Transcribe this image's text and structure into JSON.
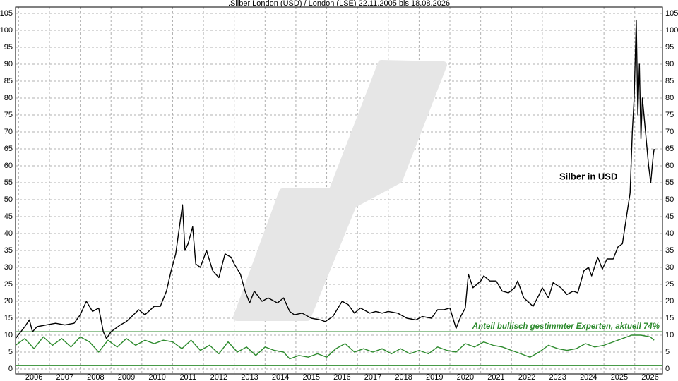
{
  "chart_data": {
    "type": "line",
    "title": ".Silber London (USD) / London (LSE) 22.11.2005 bis 18.08.2026",
    "annotations": [
      "Silber in USD",
      "Anteil bullisch gestimmter Experten, aktuell 74%"
    ],
    "xlim": [
      2005.9,
      2026.9
    ],
    "xticks": [
      2006,
      2007,
      2008,
      2009,
      2010,
      2011,
      2012,
      2013,
      2014,
      2015,
      2016,
      2017,
      2018,
      2019,
      2020,
      2021,
      2022,
      2023,
      2024,
      2025,
      2026
    ],
    "ylim": [
      0,
      105
    ],
    "yticks": [
      0,
      5,
      10,
      15,
      20,
      25,
      30,
      35,
      40,
      45,
      50,
      55,
      60,
      65,
      70,
      75,
      80,
      85,
      90,
      95,
      100,
      105
    ],
    "grid": true,
    "ref_lines": [
      1,
      11
    ],
    "ref_color": "#2e8b2e",
    "series": [
      {
        "name": "Silber in USD",
        "color": "#000000",
        "x": [
          2005.9,
          2006.2,
          2006.35,
          2006.45,
          2006.6,
          2006.9,
          2007.2,
          2007.5,
          2007.8,
          2008.0,
          2008.2,
          2008.4,
          2008.6,
          2008.75,
          2008.85,
          2009.0,
          2009.3,
          2009.5,
          2009.9,
          2010.1,
          2010.4,
          2010.6,
          2010.8,
          2010.95,
          2011.1,
          2011.32,
          2011.4,
          2011.5,
          2011.65,
          2011.75,
          2011.9,
          2012.1,
          2012.3,
          2012.5,
          2012.7,
          2012.9,
          2013.0,
          2013.2,
          2013.35,
          2013.5,
          2013.65,
          2013.9,
          2014.1,
          2014.4,
          2014.6,
          2014.8,
          2014.95,
          2015.2,
          2015.5,
          2015.8,
          2015.95,
          2016.2,
          2016.5,
          2016.7,
          2016.9,
          2017.1,
          2017.4,
          2017.6,
          2017.8,
          2018.0,
          2018.3,
          2018.6,
          2018.9,
          2019.1,
          2019.4,
          2019.6,
          2019.8,
          2020.0,
          2020.2,
          2020.35,
          2020.5,
          2020.6,
          2020.75,
          2021.0,
          2021.1,
          2021.3,
          2021.5,
          2021.7,
          2021.9,
          2022.1,
          2022.2,
          2022.4,
          2022.7,
          2022.9,
          2023.0,
          2023.2,
          2023.35,
          2023.6,
          2023.8,
          2024.0,
          2024.15,
          2024.35,
          2024.5,
          2024.6,
          2024.8,
          2024.95,
          2025.1,
          2025.3,
          2025.45,
          2025.6,
          2025.75,
          2025.85,
          2025.92,
          2025.98,
          2026.05,
          2026.1,
          2026.15,
          2026.2,
          2026.25,
          2026.35,
          2026.45,
          2026.52,
          2026.6,
          2026.63
        ],
        "values": [
          9,
          12.5,
          14.5,
          11,
          12.5,
          13,
          13.5,
          13,
          13.5,
          16,
          20,
          17,
          18,
          11,
          9,
          11,
          13,
          14,
          17.5,
          16,
          18.5,
          18.5,
          23,
          29,
          34,
          48.5,
          35,
          37,
          42,
          31,
          30,
          35,
          29,
          27,
          34,
          33,
          31,
          28,
          23,
          19.5,
          23,
          20,
          21,
          19.5,
          21,
          17,
          16,
          16.5,
          15,
          14.5,
          14,
          15.5,
          20,
          19,
          16.5,
          18,
          16.5,
          17,
          16.5,
          17,
          16.5,
          15,
          14.5,
          15.5,
          15,
          17.5,
          17.5,
          18,
          12,
          15.5,
          18,
          28,
          24,
          26,
          27.5,
          26,
          26,
          23,
          22.5,
          24,
          26,
          21,
          18.5,
          22,
          24,
          21,
          25.5,
          24,
          22,
          23,
          22.5,
          29,
          30,
          27.5,
          33,
          29.5,
          32.5,
          32.5,
          36,
          37,
          46,
          52,
          70,
          80,
          103,
          75,
          90,
          68,
          80,
          70,
          60,
          55,
          63,
          65
        ]
      },
      {
        "name": "Anteil bullisch gestimmter Experten",
        "color": "#2e8b2e",
        "x": [
          2005.9,
          2006.2,
          2006.5,
          2006.8,
          2007.1,
          2007.4,
          2007.7,
          2008.0,
          2008.3,
          2008.6,
          2008.9,
          2009.2,
          2009.5,
          2009.8,
          2010.1,
          2010.4,
          2010.7,
          2011.0,
          2011.3,
          2011.6,
          2011.9,
          2012.2,
          2012.5,
          2012.8,
          2013.1,
          2013.4,
          2013.7,
          2014.0,
          2014.3,
          2014.6,
          2014.8,
          2015.1,
          2015.4,
          2015.7,
          2016.0,
          2016.3,
          2016.6,
          2016.9,
          2017.2,
          2017.5,
          2017.8,
          2018.1,
          2018.4,
          2018.7,
          2019.0,
          2019.3,
          2019.6,
          2019.9,
          2020.2,
          2020.5,
          2020.8,
          2021.1,
          2021.4,
          2021.7,
          2022.0,
          2022.3,
          2022.6,
          2022.9,
          2023.2,
          2023.5,
          2023.8,
          2024.1,
          2024.4,
          2024.7,
          2025.0,
          2025.3,
          2025.6,
          2025.9,
          2026.2,
          2026.5,
          2026.63
        ],
        "values": [
          7,
          9,
          6,
          9.5,
          7,
          9,
          6.5,
          9.5,
          8,
          5,
          8.5,
          6.5,
          9,
          7,
          8.5,
          7.5,
          8.5,
          8,
          6,
          8.5,
          5.5,
          7,
          4.5,
          8,
          5,
          6.5,
          4,
          6.5,
          5.5,
          5,
          3,
          4,
          3.5,
          4.5,
          3.5,
          6,
          7.5,
          5,
          6,
          5,
          6,
          4.5,
          6,
          4.5,
          5.5,
          4.5,
          6.5,
          5.5,
          5,
          7.5,
          6.5,
          8,
          7,
          6.5,
          5.5,
          4.5,
          3.5,
          5,
          7,
          6,
          5.5,
          6,
          7.5,
          6.5,
          7,
          8,
          9,
          10,
          10,
          9.5,
          8.5
        ]
      }
    ]
  }
}
